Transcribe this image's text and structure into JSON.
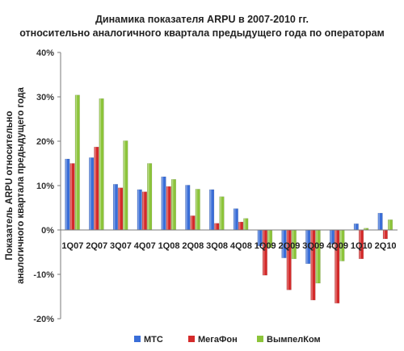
{
  "chart_data": {
    "type": "bar",
    "title_lines": [
      "Динамика показателя ARPU в 2007-2010 гг.",
      "относительно аналогичного квартала предыдущего года по операторам"
    ],
    "ylabel_lines": [
      "Показатель ARPU относительно",
      "аналогичного квартала предыдущего года"
    ],
    "xlabel": "",
    "ylim": [
      -20,
      40
    ],
    "yticks": [
      -20,
      -10,
      0,
      10,
      20,
      30,
      40
    ],
    "ytick_labels": [
      "-20%",
      "-10%",
      "0%",
      "10%",
      "20%",
      "30%",
      "40%"
    ],
    "grid": false,
    "legend_position": "bottom",
    "categories": [
      "1Q07",
      "2Q07",
      "3Q07",
      "4Q07",
      "1Q08",
      "2Q08",
      "3Q08",
      "4Q08",
      "1Q09",
      "2Q09",
      "3Q09",
      "4Q09",
      "1Q10",
      "2Q10"
    ],
    "series": [
      {
        "name": "МТС",
        "color": "#3a6ed8",
        "values": [
          16,
          16.3,
          10.3,
          9.1,
          12.0,
          10.1,
          9.1,
          4.8,
          -3.6,
          -6.3,
          -7.6,
          -3.2,
          1.4,
          3.8
        ]
      },
      {
        "name": "МегаФон",
        "color": "#d42a2a",
        "values": [
          15,
          18.7,
          9.5,
          8.6,
          9.8,
          3.2,
          1.5,
          1.8,
          -10.2,
          -13.5,
          -15.8,
          -16.5,
          -6.5,
          -2.0
        ]
      },
      {
        "name": "ВымпелКом",
        "color": "#8cc43a",
        "values": [
          30.4,
          29.6,
          20.1,
          15.0,
          11.4,
          9.2,
          7.5,
          2.6,
          -4.0,
          -6.5,
          -12.0,
          -7.0,
          0.4,
          2.3
        ]
      }
    ]
  }
}
